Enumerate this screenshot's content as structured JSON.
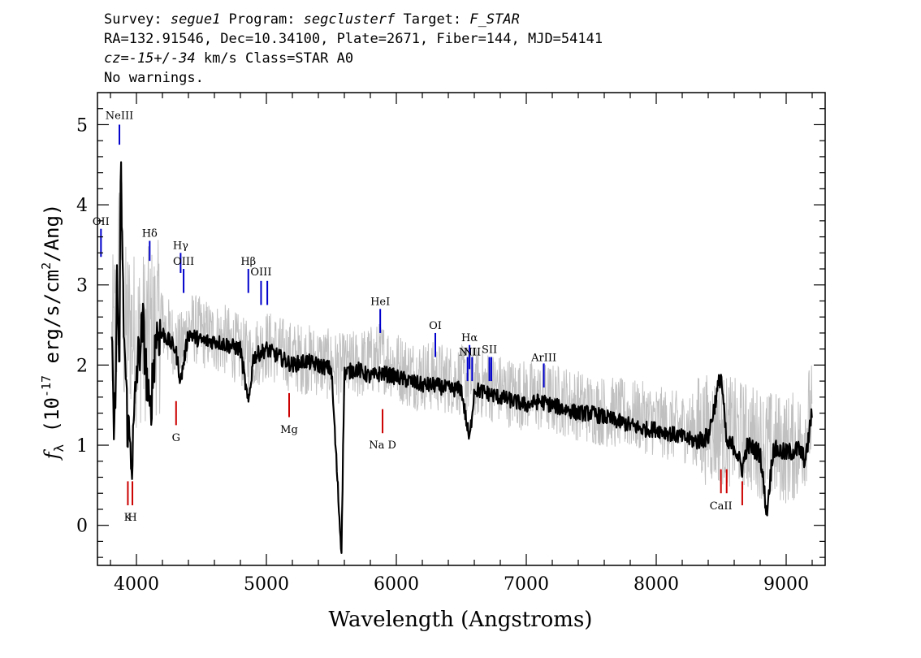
{
  "header": {
    "line1": {
      "survey_label": "Survey: ",
      "survey": "segue1",
      "program_label": " Program: ",
      "program": "segclusterf",
      "target_label": " Target: ",
      "target": "F_STAR"
    },
    "line2": "RA=132.91546, Dec=10.34100, Plate=2671, Fiber=144, MJD=54141",
    "line3": {
      "cz_value": "cz=-15+/-34",
      "rest": " km/s Class=STAR A0"
    },
    "line4": "No warnings."
  },
  "chart_data": {
    "type": "line",
    "xlabel": "Wavelength (Angstroms)",
    "ylabel": "f_λ (10^-17 erg/s/cm^2/Ang)",
    "xlim": [
      3700,
      9300
    ],
    "ylim": [
      -0.5,
      5.4
    ],
    "xticks": [
      4000,
      5000,
      6000,
      7000,
      8000,
      9000
    ],
    "yticks": [
      0,
      1,
      2,
      3,
      4,
      5
    ],
    "series": [
      {
        "role": "raw flux",
        "color": "#c0c0c0",
        "x": [
          3810,
          3850,
          3880,
          3900,
          3950,
          4000,
          4100,
          4200,
          4340,
          4400,
          4500,
          4700,
          4861,
          5000,
          5200,
          5400,
          5577,
          5700,
          5890,
          6100,
          6300,
          6563,
          6700,
          6900,
          7100,
          7300,
          7500,
          7700,
          7900,
          8100,
          8300,
          8500,
          8700,
          8850,
          9000,
          9100,
          9200
        ],
        "y": [
          2.2,
          2.6,
          4.0,
          2.4,
          2.5,
          2.3,
          2.4,
          2.5,
          2.2,
          2.5,
          2.4,
          2.3,
          2.1,
          2.25,
          2.1,
          2.05,
          1.95,
          2.0,
          2.1,
          1.9,
          1.85,
          1.8,
          1.75,
          1.65,
          1.6,
          1.55,
          1.45,
          1.4,
          1.35,
          1.25,
          1.2,
          1.2,
          1.1,
          1.0,
          0.95,
          1.0,
          1.4
        ]
      },
      {
        "role": "smoothed flux",
        "color": "#000000",
        "x": [
          3810,
          3830,
          3850,
          3870,
          3880,
          3900,
          3930,
          3968,
          4000,
          4050,
          4102,
          4150,
          4200,
          4300,
          4340,
          4400,
          4500,
          4600,
          4700,
          4800,
          4861,
          4900,
          5000,
          5100,
          5200,
          5300,
          5400,
          5500,
          5577,
          5600,
          5700,
          5800,
          5890,
          6000,
          6100,
          6200,
          6300,
          6400,
          6500,
          6563,
          6600,
          6700,
          6800,
          6900,
          7000,
          7100,
          7200,
          7300,
          7400,
          7500,
          7600,
          7700,
          7800,
          7900,
          8000,
          8100,
          8200,
          8300,
          8400,
          8498,
          8542,
          8600,
          8662,
          8700,
          8800,
          8850,
          8900,
          9000,
          9100,
          9150,
          9200
        ],
        "y": [
          2.2,
          1.0,
          3.0,
          2.0,
          4.5,
          2.6,
          1.3,
          0.8,
          1.9,
          2.5,
          1.3,
          2.4,
          2.4,
          2.2,
          1.8,
          2.4,
          2.3,
          2.3,
          2.25,
          2.2,
          1.5,
          2.1,
          2.2,
          2.1,
          2.0,
          2.05,
          2.0,
          1.95,
          -0.35,
          1.9,
          1.95,
          1.85,
          1.9,
          1.85,
          1.8,
          1.75,
          1.75,
          1.7,
          1.7,
          1.05,
          1.7,
          1.65,
          1.6,
          1.55,
          1.5,
          1.55,
          1.5,
          1.45,
          1.4,
          1.4,
          1.35,
          1.3,
          1.25,
          1.2,
          1.2,
          1.15,
          1.1,
          1.05,
          1.1,
          1.9,
          1.0,
          1.0,
          0.7,
          1.0,
          0.9,
          0.15,
          0.95,
          0.9,
          0.95,
          0.8,
          1.45
        ]
      }
    ],
    "line_markers": [
      {
        "label": "OII",
        "wavelength": 3727,
        "y0": 3.35,
        "y1": 3.7,
        "color": "#0000cc",
        "label_y": 3.75
      },
      {
        "label": "NeIII",
        "wavelength": 3869,
        "y0": 4.75,
        "y1": 5.0,
        "color": "#0000cc",
        "label_y": 5.07
      },
      {
        "label": "Hδ",
        "wavelength": 4102,
        "y0": 3.3,
        "y1": 3.55,
        "color": "#0000cc",
        "label_y": 3.6
      },
      {
        "label": "Hγ",
        "wavelength": 4340,
        "y0": 3.15,
        "y1": 3.4,
        "color": "#0000cc",
        "label_y": 3.45
      },
      {
        "label": "OIII",
        "wavelength": 4363,
        "y0": 2.9,
        "y1": 3.2,
        "color": "#0000cc",
        "label_y": 3.25
      },
      {
        "label": "Hβ",
        "wavelength": 4861,
        "y0": 2.9,
        "y1": 3.2,
        "color": "#0000cc",
        "label_y": 3.25
      },
      {
        "label": "OIII",
        "wavelength": 4959,
        "y0": 2.75,
        "y1": 3.05,
        "color": "#0000cc",
        "label_y": 3.12
      },
      {
        "label": "OIII",
        "wavelength": 5007,
        "y0": 2.75,
        "y1": 3.05,
        "color": "#0000cc",
        "label_y": null
      },
      {
        "label": "HeI",
        "wavelength": 5876,
        "y0": 2.4,
        "y1": 2.7,
        "color": "#0000cc",
        "label_y": 2.75
      },
      {
        "label": "OI",
        "wavelength": 6300,
        "y0": 2.1,
        "y1": 2.4,
        "color": "#0000cc",
        "label_y": 2.45
      },
      {
        "label": "NII",
        "wavelength": 6548,
        "y0": 1.8,
        "y1": 2.1,
        "color": "#0000cc",
        "label_y": 2.12
      },
      {
        "label": "Hα",
        "wavelength": 6563,
        "y0": 1.95,
        "y1": 2.25,
        "color": "#0000cc",
        "label_y": 2.3
      },
      {
        "label": "NII",
        "wavelength": 6583,
        "y0": 1.8,
        "y1": 2.1,
        "color": "#0000cc",
        "label_y": 2.12
      },
      {
        "label": "SII",
        "wavelength": 6716,
        "y0": 1.8,
        "y1": 2.1,
        "color": "#0000cc",
        "label_y": 2.15
      },
      {
        "label": "SII",
        "wavelength": 6731,
        "y0": 1.8,
        "y1": 2.1,
        "color": "#0000cc",
        "label_y": null
      },
      {
        "label": "ArIII",
        "wavelength": 7135,
        "y0": 1.72,
        "y1": 2.02,
        "color": "#0000cc",
        "label_y": 2.05
      },
      {
        "label": "G",
        "wavelength": 4305,
        "y0": 1.25,
        "y1": 1.55,
        "color": "#cc0000",
        "label_y": 1.05
      },
      {
        "label": "Mg",
        "wavelength": 5175,
        "y0": 1.35,
        "y1": 1.65,
        "color": "#cc0000",
        "label_y": 1.15
      },
      {
        "label": "Na D",
        "wavelength": 5894,
        "y0": 1.15,
        "y1": 1.45,
        "color": "#cc0000",
        "label_y": 0.96
      },
      {
        "label": "K",
        "wavelength": 3934,
        "y0": 0.25,
        "y1": 0.55,
        "color": "#cc0000",
        "label_y": 0.06
      },
      {
        "label": "H",
        "wavelength": 3969,
        "y0": 0.25,
        "y1": 0.55,
        "color": "#cc0000",
        "label_y": 0.06
      },
      {
        "label": "CaII",
        "wavelength": 8498,
        "y0": 0.4,
        "y1": 0.7,
        "color": "#cc0000",
        "label_y": 0.2
      },
      {
        "label": "CaII",
        "wavelength": 8542,
        "y0": 0.4,
        "y1": 0.7,
        "color": "#cc0000",
        "label_y": null
      },
      {
        "label": "CaII",
        "wavelength": 8662,
        "y0": 0.25,
        "y1": 0.55,
        "color": "#cc0000",
        "label_y": null
      }
    ],
    "grid": false,
    "legend": "none"
  }
}
